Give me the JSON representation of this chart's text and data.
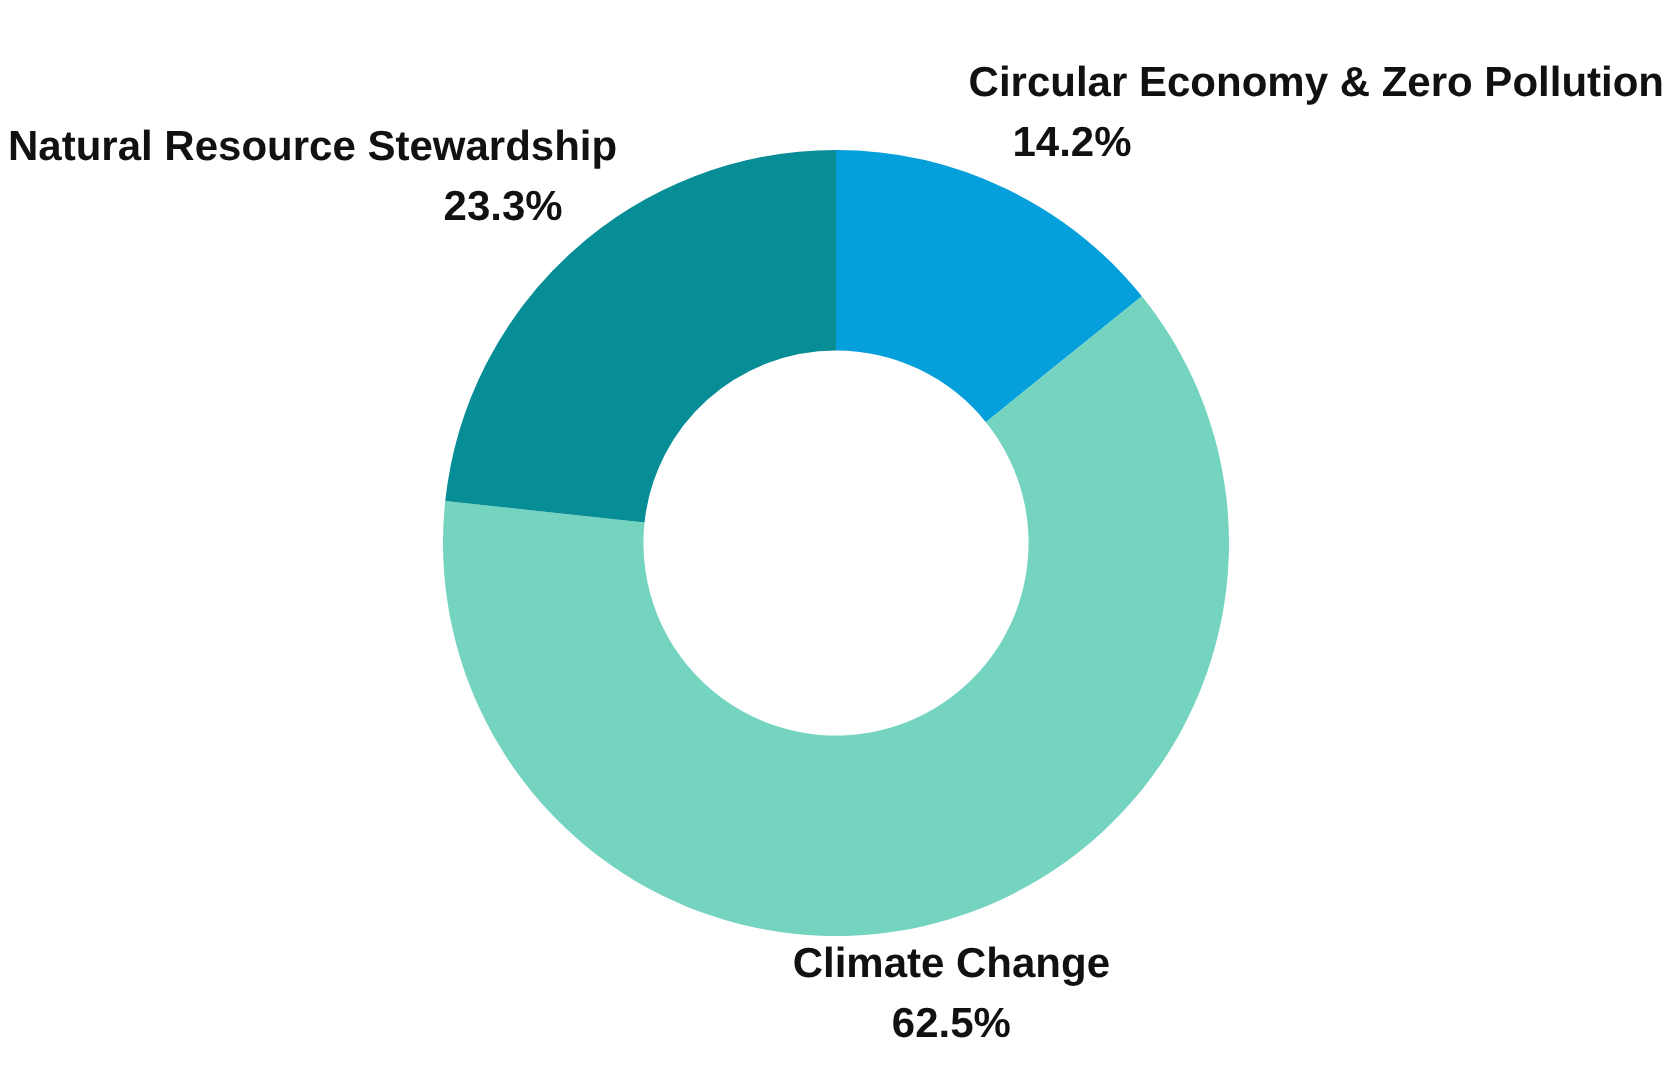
{
  "chart_data": {
    "type": "donut",
    "categories": [
      "Circular Economy & Zero Pollution",
      "Climate Change",
      "Natural Resource Stewardship"
    ],
    "values": [
      14.2,
      62.5,
      23.3
    ],
    "colors": [
      "#059fdb",
      "#75d4bf",
      "#078d96"
    ],
    "value_labels": [
      "14.2%",
      "62.5%",
      "23.3%"
    ],
    "legend": false
  }
}
